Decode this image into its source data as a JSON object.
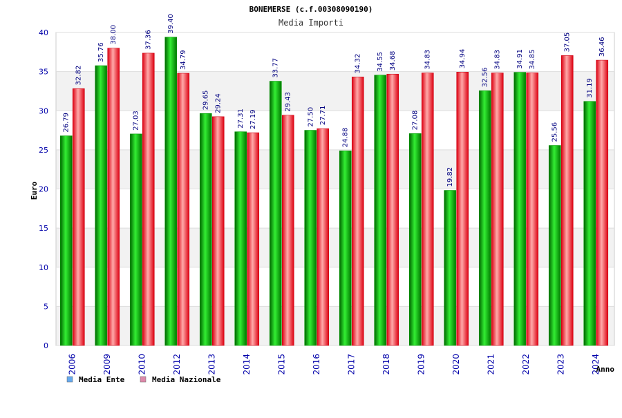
{
  "chart_data": {
    "type": "bar",
    "title": "BONEMERSE (c.f.00308090190)",
    "subtitle": "Media Importi",
    "xlabel": "Anno",
    "ylabel": "Euro",
    "ylim": [
      0,
      40
    ],
    "yticks": [
      0,
      5,
      10,
      15,
      20,
      25,
      30,
      35,
      40
    ],
    "grid": true,
    "legend_position": "bottom-left",
    "categories": [
      "2006",
      "2009",
      "2010",
      "2012",
      "2013",
      "2014",
      "2015",
      "2016",
      "2017",
      "2018",
      "2019",
      "2020",
      "2021",
      "2022",
      "2023",
      "2024"
    ],
    "series": [
      {
        "name": "Media Ente",
        "color": "#00bb00",
        "legend_color": "#66aaee",
        "values": [
          26.79,
          35.76,
          27.03,
          39.4,
          29.65,
          27.31,
          33.77,
          27.5,
          24.88,
          34.55,
          27.08,
          19.82,
          32.56,
          34.91,
          25.56,
          31.19
        ],
        "labels": [
          "26.79",
          "35.76",
          "27.03",
          "39.40",
          "29.65",
          "27.31",
          "33.77",
          "27.50",
          "24.88",
          "34.55",
          "27.08",
          "19.82",
          "32.56",
          "34.91",
          "25.56",
          "31.19"
        ]
      },
      {
        "name": "Media Nazionale",
        "color": "#ee2233",
        "legend_color": "#dd88aa",
        "values": [
          32.82,
          38.0,
          37.36,
          34.79,
          29.24,
          27.19,
          29.43,
          27.71,
          34.32,
          34.68,
          34.83,
          34.94,
          34.83,
          34.85,
          37.05,
          36.46
        ],
        "labels": [
          "32.82",
          "38.00",
          "37.36",
          "34.79",
          "29.24",
          "27.19",
          "29.43",
          "27.71",
          "34.32",
          "34.68",
          "34.83",
          "34.94",
          "34.83",
          "34.85",
          "37.05",
          "36.46"
        ]
      }
    ]
  }
}
